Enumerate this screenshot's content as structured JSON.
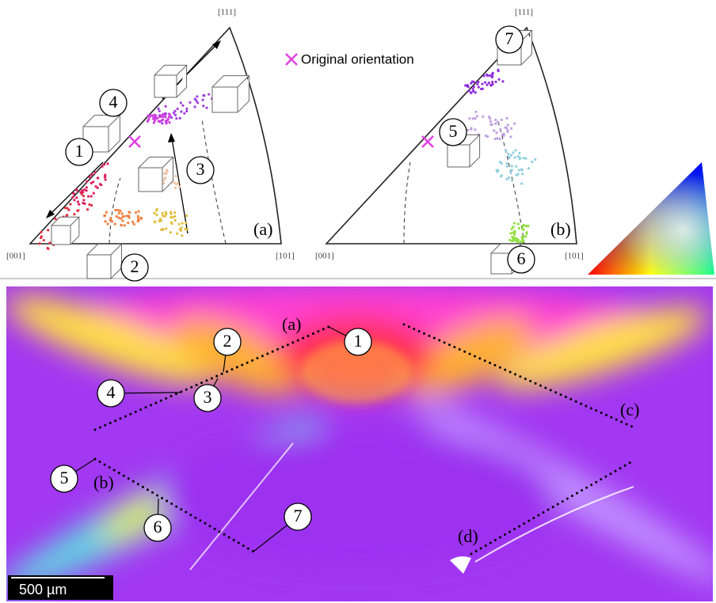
{
  "pole_figures": [
    {
      "corners": {
        "top": "[111]",
        "left": "[001]",
        "right": "[101]"
      },
      "panel_label": "(a)",
      "callouts": [
        "1",
        "2",
        "3",
        "4"
      ]
    },
    {
      "corners": {
        "top": "[111]",
        "left": "[001]",
        "right": "[101]"
      },
      "panel_label": "(b)",
      "callouts": [
        "5",
        "6",
        "7"
      ]
    }
  ],
  "legend": "Original orientation",
  "map": {
    "line_labels": [
      "(a)",
      "(b)",
      "(c)",
      "(d)"
    ],
    "callouts": [
      "1",
      "2",
      "3",
      "4",
      "5",
      "6",
      "7"
    ],
    "scale_bar": "500 µm"
  }
}
